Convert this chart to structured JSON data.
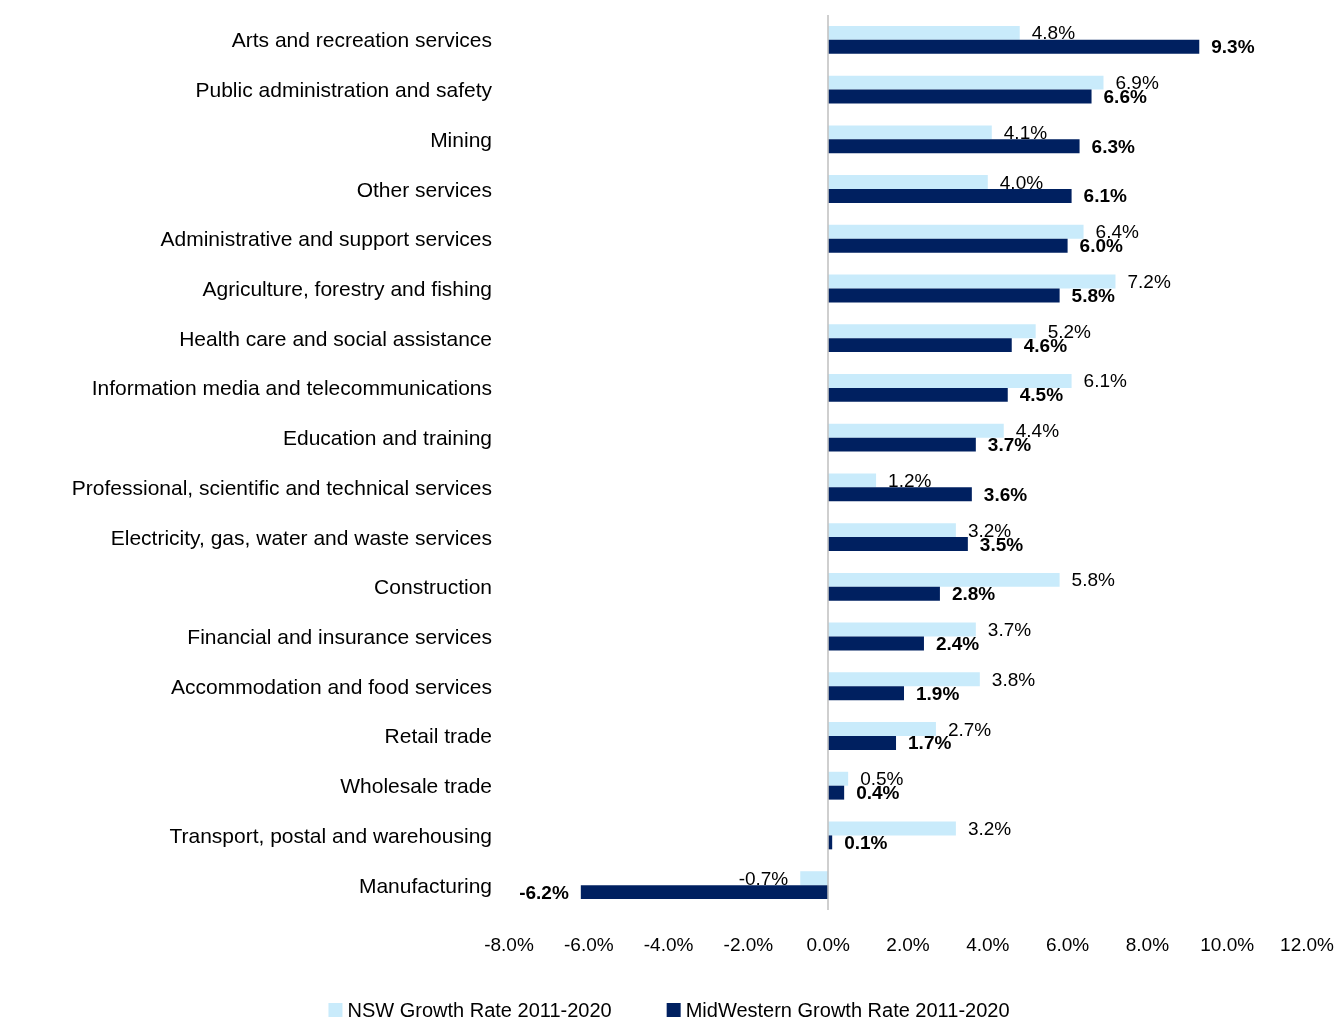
{
  "chart_data": {
    "type": "bar",
    "orientation": "horizontal",
    "categories": [
      "Arts and recreation services",
      "Public administration and safety",
      "Mining",
      "Other services",
      "Administrative and support services",
      "Agriculture, forestry and fishing",
      "Health care and social assistance",
      "Information media and telecommunications",
      "Education and training",
      "Professional, scientific and technical services",
      "Electricity, gas, water and waste services",
      "Construction",
      "Financial and insurance services",
      "Accommodation and food services",
      "Retail trade",
      "Wholesale trade",
      "Transport, postal and warehousing",
      "Manufacturing"
    ],
    "series": [
      {
        "name": "NSW Growth Rate 2011-2020",
        "color": "#c9ebfb",
        "values": [
          4.8,
          6.9,
          4.1,
          4.0,
          6.4,
          7.2,
          5.2,
          6.1,
          4.4,
          1.2,
          3.2,
          5.8,
          3.7,
          3.8,
          2.7,
          0.5,
          3.2,
          -0.7
        ],
        "value_labels": [
          "4.8%",
          "6.9%",
          "4.1%",
          "4.0%",
          "6.4%",
          "7.2%",
          "5.2%",
          "6.1%",
          "4.4%",
          "1.2%",
          "3.2%",
          "5.8%",
          "3.7%",
          "3.8%",
          "2.7%",
          "0.5%",
          "3.2%",
          "-0.7%"
        ]
      },
      {
        "name": "MidWestern Growth Rate 2011-2020",
        "color": "#002060",
        "values": [
          9.3,
          6.6,
          6.3,
          6.1,
          6.0,
          5.8,
          4.6,
          4.5,
          3.7,
          3.6,
          3.5,
          2.8,
          2.4,
          1.9,
          1.7,
          0.4,
          0.1,
          -6.2
        ],
        "value_labels": [
          "9.3%",
          "6.6%",
          "6.3%",
          "6.1%",
          "6.0%",
          "5.8%",
          "4.6%",
          "4.5%",
          "3.7%",
          "3.6%",
          "3.5%",
          "2.8%",
          "2.4%",
          "1.9%",
          "1.7%",
          "0.4%",
          "0.1%",
          "-6.2%"
        ]
      }
    ],
    "xlim": [
      -8,
      12
    ],
    "xticks": [
      {
        "value": -8,
        "label": "-8.0%"
      },
      {
        "value": -6,
        "label": "-6.0%"
      },
      {
        "value": -4,
        "label": "-4.0%"
      },
      {
        "value": -2,
        "label": "-2.0%"
      },
      {
        "value": 0,
        "label": "0.0%"
      },
      {
        "value": 2,
        "label": "2.0%"
      },
      {
        "value": 4,
        "label": "4.0%"
      },
      {
        "value": 6,
        "label": "6.0%"
      },
      {
        "value": 8,
        "label": "8.0%"
      },
      {
        "value": 10,
        "label": "10.0%"
      },
      {
        "value": 12,
        "label": "12.0%"
      }
    ],
    "ref_lines": [
      {
        "axis": "x",
        "value": 0,
        "color": "#bfbfbf"
      }
    ],
    "legend": "bottom",
    "grid": false
  }
}
